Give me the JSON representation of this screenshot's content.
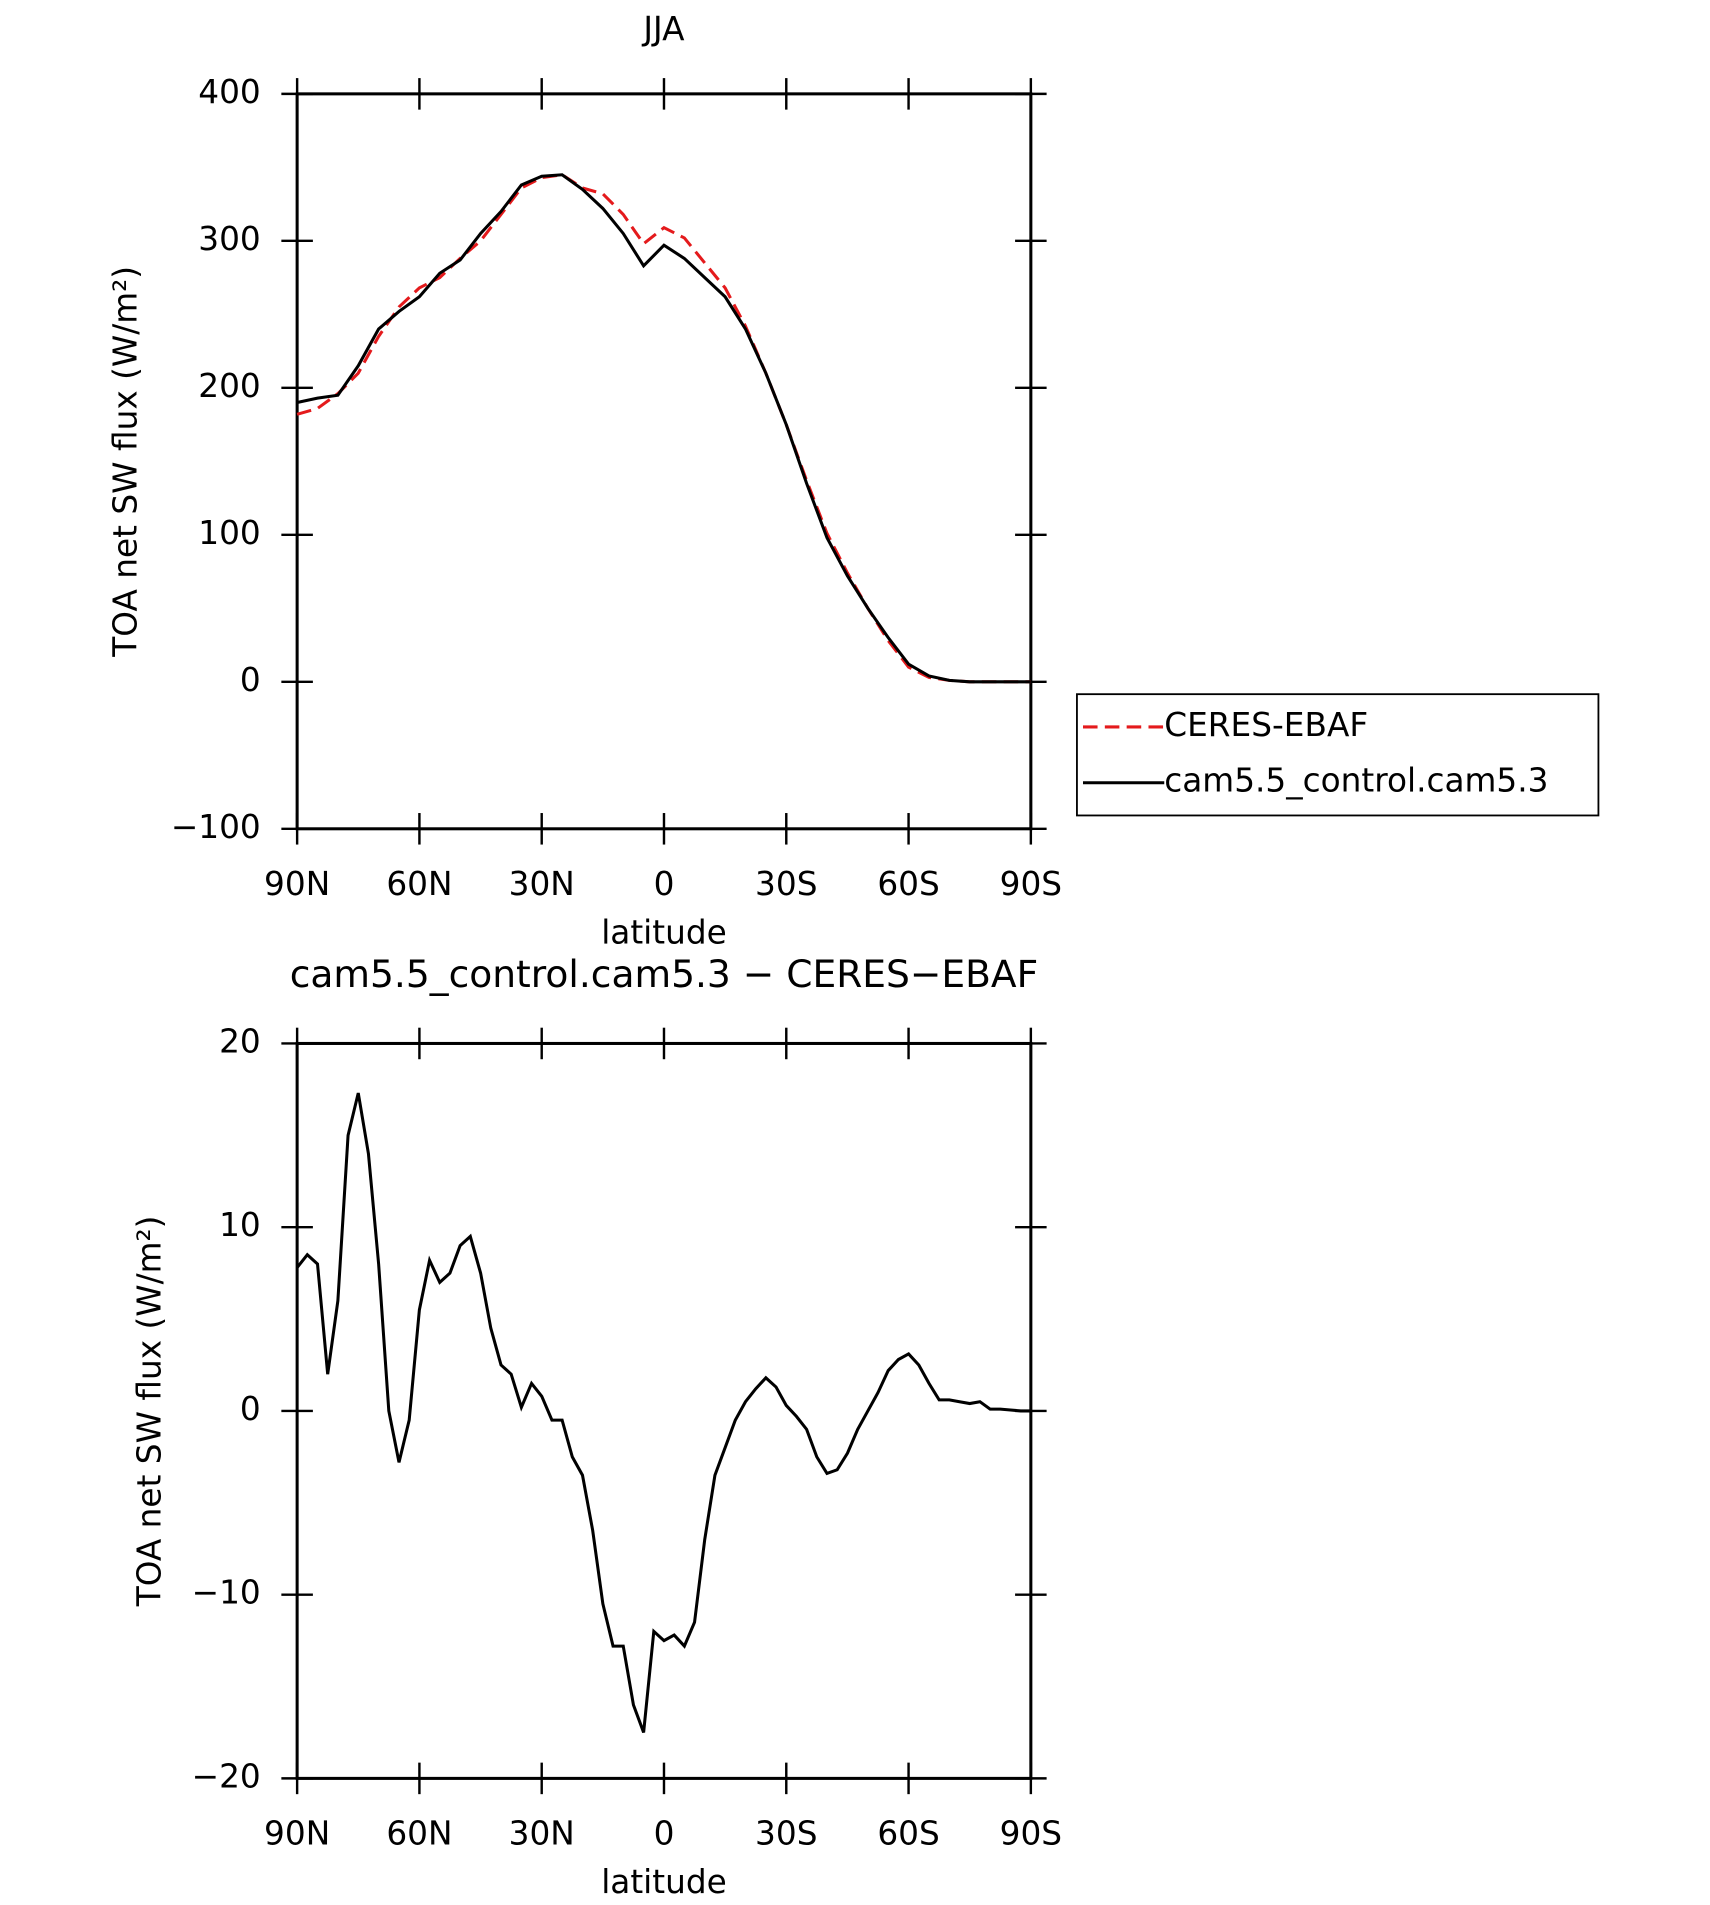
{
  "chart_data": [
    {
      "type": "line",
      "title": "JJA",
      "x_label": "latitude",
      "y_label": "TOA net SW flux (W/m²)",
      "x": [
        90,
        85,
        80,
        75,
        70,
        65,
        60,
        55,
        50,
        45,
        40,
        35,
        30,
        25,
        20,
        15,
        10,
        5,
        0,
        -5,
        -10,
        -15,
        -20,
        -25,
        -30,
        -35,
        -40,
        -45,
        -50,
        -55,
        -60,
        -65,
        -70,
        -75,
        -80,
        -85,
        -90
      ],
      "xlim": [
        90,
        -90
      ],
      "xticks": [
        {
          "value": 90,
          "label": "90N"
        },
        {
          "value": 60,
          "label": "60N"
        },
        {
          "value": 30,
          "label": "30N"
        },
        0,
        {
          "value": -30,
          "label": "30S"
        },
        {
          "value": -60,
          "label": "60S"
        },
        {
          "value": -90,
          "label": "90S"
        }
      ],
      "ylim": [
        -100,
        400
      ],
      "yticks": [
        {
          "value": -100,
          "label": "−100"
        },
        0,
        100,
        200,
        300,
        400
      ],
      "legend": "right",
      "series": [
        {
          "name": "CERES-EBAF",
          "color": "#e41a1c",
          "dashed": true,
          "values": [
            182,
            186,
            196,
            210,
            235,
            255,
            268,
            275,
            288,
            300,
            318,
            336,
            343,
            345,
            336,
            332,
            318,
            298,
            309,
            302,
            285,
            268,
            242,
            210,
            175,
            137,
            101,
            74,
            50,
            28,
            10,
            3,
            1,
            0,
            0,
            0,
            0
          ]
        },
        {
          "name": "cam5.5_control.cam5.3",
          "color": "#000000",
          "dashed": false,
          "values": [
            190,
            193,
            195,
            215,
            240,
            252,
            262,
            278,
            287,
            305,
            320,
            338,
            344,
            345,
            335,
            322,
            305,
            283,
            297,
            288,
            275,
            262,
            240,
            210,
            175,
            135,
            98,
            72,
            50,
            30,
            12,
            4,
            1,
            0,
            0,
            0,
            0
          ]
        }
      ]
    },
    {
      "type": "line",
      "title": "cam5.5_control.cam5.3 − CERES−EBAF",
      "x_label": "latitude",
      "y_label": "TOA net SW flux (W/m²)",
      "x": [
        90,
        87.5,
        85,
        82.5,
        80,
        77.5,
        75,
        72.5,
        70,
        67.5,
        65,
        62.5,
        60,
        57.5,
        55,
        52.5,
        50,
        47.5,
        45,
        42.5,
        40,
        37.5,
        35,
        32.5,
        30,
        27.5,
        25,
        22.5,
        20,
        17.5,
        15,
        12.5,
        10,
        7.5,
        5,
        2.5,
        0,
        -2.5,
        -5,
        -7.5,
        -10,
        -12.5,
        -15,
        -17.5,
        -20,
        -22.5,
        -25,
        -27.5,
        -30,
        -32.5,
        -35,
        -37.5,
        -40,
        -42.5,
        -45,
        -47.5,
        -50,
        -52.5,
        -55,
        -57.5,
        -60,
        -62.5,
        -65,
        -67.5,
        -70,
        -72.5,
        -75,
        -77.5,
        -80,
        -82.5,
        -85,
        -87.5,
        -90
      ],
      "xlim": [
        90,
        -90
      ],
      "xticks": [
        {
          "value": 90,
          "label": "90N"
        },
        {
          "value": 60,
          "label": "60N"
        },
        {
          "value": 30,
          "label": "30N"
        },
        0,
        {
          "value": -30,
          "label": "30S"
        },
        {
          "value": -60,
          "label": "60S"
        },
        {
          "value": -90,
          "label": "90S"
        }
      ],
      "ylim": [
        -20,
        20
      ],
      "yticks": [
        {
          "value": -20,
          "label": "−20"
        },
        {
          "value": -10,
          "label": "−10"
        },
        0,
        10,
        20
      ],
      "series": [
        {
          "color": "#000000",
          "dashed": false,
          "values": [
            7.8,
            8.5,
            8.0,
            2,
            6,
            15,
            17.3,
            14,
            8,
            0,
            -2.8,
            -0.5,
            5.5,
            8.2,
            7.0,
            7.5,
            9,
            9.5,
            7.5,
            4.5,
            2.5,
            2.0,
            0.2,
            1.5,
            0.8,
            -0.5,
            -0.5,
            -2.5,
            -3.5,
            -6.5,
            -10.5,
            -12.8,
            -12.8,
            -16.0,
            -17.5,
            -12.0,
            -12.5,
            -12.2,
            -12.8,
            -11.5,
            -7.0,
            -3.5,
            -2.0,
            -0.5,
            0.5,
            1.2,
            1.8,
            1.3,
            0.3,
            -0.3,
            -1.0,
            -2.5,
            -3.4,
            -3.2,
            -2.3,
            -1.0,
            0,
            1.0,
            2.2,
            2.8,
            3.1,
            2.5,
            1.5,
            0.6,
            0.6,
            0.5,
            0.4,
            0.5,
            0.1,
            0.1,
            0.05,
            0,
            0
          ]
        }
      ]
    }
  ]
}
